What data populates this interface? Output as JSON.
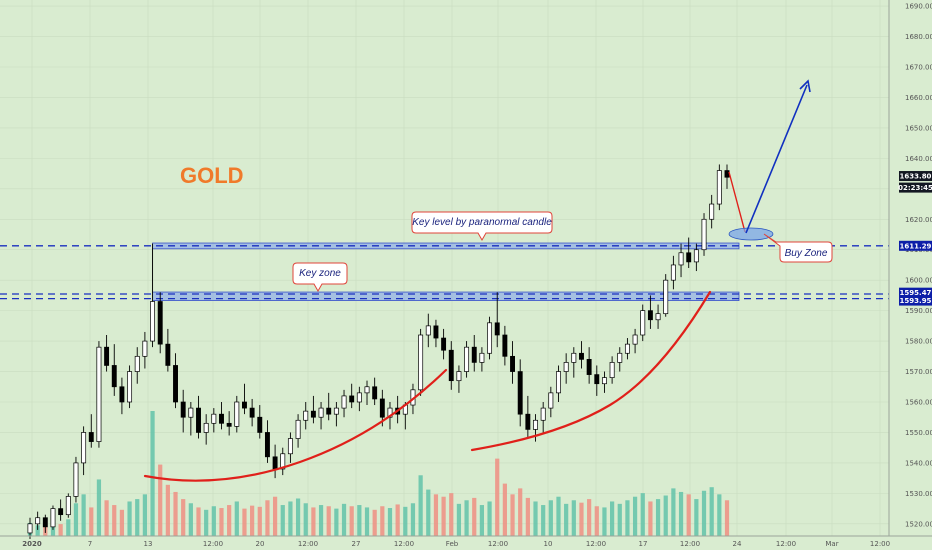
{
  "chart_data": {
    "type": "candlestick",
    "title": "GOLD",
    "ylim": [
      1516,
      1692
    ],
    "y_ticks": [
      1520,
      1530,
      1540,
      1550,
      1560,
      1570,
      1580,
      1590,
      1600,
      1610,
      1620,
      1630,
      1640,
      1650,
      1660,
      1670,
      1680,
      1690
    ],
    "x_ticks": [
      "2020",
      "7",
      "13",
      "12:00",
      "20",
      "12:00",
      "27",
      "12:00",
      "Feb",
      "12:00",
      "10",
      "12:00",
      "17",
      "12:00",
      "24",
      "12:00",
      "Mar",
      "12:00"
    ],
    "price_tags": [
      {
        "value": "1633.80",
        "color": "#131722",
        "role": "last"
      },
      {
        "value": "02:23:45",
        "color": "#131722",
        "role": "countdown"
      },
      {
        "value": "1611.29",
        "color": "#0d1ea8",
        "role": "level"
      },
      {
        "value": "1595.47",
        "color": "#0d1ea8",
        "role": "level"
      },
      {
        "value": "1593.95",
        "color": "#0d1ea8",
        "role": "level"
      }
    ],
    "levels": [
      1611.29,
      1595.47,
      1593.95
    ],
    "annotations": [
      {
        "text": "Key level by paranormal candle"
      },
      {
        "text": "Key zone"
      },
      {
        "text": "Buy Zone"
      }
    ],
    "candles": [
      [
        1517,
        1522,
        1515,
        1520
      ],
      [
        1520,
        1524,
        1518,
        1522
      ],
      [
        1522,
        1523,
        1517,
        1519
      ],
      [
        1519,
        1526,
        1518,
        1525
      ],
      [
        1525,
        1528,
        1521,
        1523
      ],
      [
        1523,
        1530,
        1522,
        1529
      ],
      [
        1529,
        1542,
        1527,
        1540
      ],
      [
        1540,
        1552,
        1536,
        1550
      ],
      [
        1550,
        1556,
        1545,
        1547
      ],
      [
        1547,
        1580,
        1545,
        1578
      ],
      [
        1578,
        1582,
        1570,
        1572
      ],
      [
        1572,
        1579,
        1562,
        1565
      ],
      [
        1565,
        1568,
        1556,
        1560
      ],
      [
        1560,
        1572,
        1558,
        1570
      ],
      [
        1570,
        1578,
        1566,
        1575
      ],
      [
        1575,
        1583,
        1571,
        1580
      ],
      [
        1580,
        1612,
        1578,
        1593
      ],
      [
        1593,
        1596,
        1576,
        1579
      ],
      [
        1579,
        1584,
        1570,
        1572
      ],
      [
        1572,
        1576,
        1558,
        1560
      ],
      [
        1560,
        1564,
        1550,
        1555
      ],
      [
        1555,
        1560,
        1549,
        1558
      ],
      [
        1558,
        1562,
        1548,
        1550
      ],
      [
        1550,
        1556,
        1546,
        1553
      ],
      [
        1553,
        1558,
        1550,
        1556
      ],
      [
        1556,
        1560,
        1551,
        1553
      ],
      [
        1553,
        1557,
        1549,
        1552
      ],
      [
        1552,
        1562,
        1550,
        1560
      ],
      [
        1560,
        1566,
        1556,
        1558
      ],
      [
        1558,
        1561,
        1552,
        1555
      ],
      [
        1555,
        1559,
        1548,
        1550
      ],
      [
        1550,
        1554,
        1540,
        1542
      ],
      [
        1542,
        1546,
        1535,
        1538
      ],
      [
        1538,
        1545,
        1536,
        1543
      ],
      [
        1543,
        1550,
        1540,
        1548
      ],
      [
        1548,
        1556,
        1545,
        1554
      ],
      [
        1554,
        1560,
        1551,
        1557
      ],
      [
        1557,
        1562,
        1553,
        1555
      ],
      [
        1555,
        1560,
        1551,
        1558
      ],
      [
        1558,
        1563,
        1554,
        1556
      ],
      [
        1556,
        1560,
        1552,
        1558
      ],
      [
        1558,
        1564,
        1555,
        1562
      ],
      [
        1562,
        1566,
        1558,
        1560
      ],
      [
        1560,
        1565,
        1557,
        1563
      ],
      [
        1563,
        1567,
        1559,
        1565
      ],
      [
        1565,
        1568,
        1559,
        1561
      ],
      [
        1561,
        1564,
        1552,
        1555
      ],
      [
        1555,
        1560,
        1551,
        1558
      ],
      [
        1558,
        1562,
        1553,
        1556
      ],
      [
        1556,
        1560,
        1551,
        1559
      ],
      [
        1559,
        1566,
        1556,
        1564
      ],
      [
        1564,
        1584,
        1562,
        1582
      ],
      [
        1582,
        1589,
        1578,
        1585
      ],
      [
        1585,
        1587,
        1578,
        1581
      ],
      [
        1581,
        1584,
        1574,
        1577
      ],
      [
        1577,
        1580,
        1564,
        1567
      ],
      [
        1567,
        1572,
        1563,
        1570
      ],
      [
        1570,
        1580,
        1568,
        1578
      ],
      [
        1578,
        1582,
        1570,
        1573
      ],
      [
        1573,
        1578,
        1570,
        1576
      ],
      [
        1576,
        1588,
        1574,
        1586
      ],
      [
        1586,
        1596,
        1578,
        1582
      ],
      [
        1582,
        1585,
        1572,
        1575
      ],
      [
        1575,
        1580,
        1566,
        1570
      ],
      [
        1570,
        1574,
        1552,
        1556
      ],
      [
        1556,
        1562,
        1548,
        1551
      ],
      [
        1551,
        1556,
        1547,
        1554
      ],
      [
        1554,
        1560,
        1550,
        1558
      ],
      [
        1558,
        1565,
        1555,
        1563
      ],
      [
        1563,
        1572,
        1560,
        1570
      ],
      [
        1570,
        1576,
        1566,
        1573
      ],
      [
        1573,
        1578,
        1568,
        1576
      ],
      [
        1576,
        1580,
        1571,
        1574
      ],
      [
        1574,
        1578,
        1566,
        1569
      ],
      [
        1569,
        1572,
        1562,
        1566
      ],
      [
        1566,
        1570,
        1563,
        1568
      ],
      [
        1568,
        1575,
        1566,
        1573
      ],
      [
        1573,
        1578,
        1570,
        1576
      ],
      [
        1576,
        1581,
        1574,
        1579
      ],
      [
        1579,
        1584,
        1576,
        1582
      ],
      [
        1582,
        1592,
        1580,
        1590
      ],
      [
        1590,
        1595,
        1584,
        1587
      ],
      [
        1587,
        1592,
        1584,
        1589
      ],
      [
        1589,
        1602,
        1588,
        1600
      ],
      [
        1600,
        1608,
        1597,
        1605
      ],
      [
        1605,
        1612,
        1601,
        1609
      ],
      [
        1609,
        1614,
        1604,
        1606
      ],
      [
        1606,
        1612,
        1603,
        1610
      ],
      [
        1610,
        1622,
        1608,
        1620
      ],
      [
        1620,
        1628,
        1617,
        1625
      ],
      [
        1625,
        1638,
        1623,
        1636
      ],
      [
        1636,
        1638,
        1630,
        1633.8
      ]
    ],
    "volume": [
      22,
      18,
      26,
      24,
      20,
      28,
      55,
      70,
      48,
      95,
      60,
      52,
      44,
      58,
      62,
      70,
      210,
      120,
      86,
      74,
      62,
      55,
      48,
      44,
      50,
      47,
      52,
      58,
      46,
      51,
      49,
      60,
      66,
      52,
      58,
      63,
      55,
      48,
      52,
      50,
      46,
      54,
      50,
      52,
      48,
      44,
      50,
      47,
      53,
      49,
      55,
      102,
      78,
      70,
      66,
      72,
      54,
      60,
      64,
      52,
      58,
      130,
      88,
      70,
      80,
      64,
      58,
      52,
      60,
      66,
      54,
      60,
      56,
      62,
      50,
      48,
      58,
      54,
      60,
      66,
      72,
      58,
      62,
      68,
      80,
      74,
      70,
      62,
      76,
      82,
      70,
      60
    ]
  }
}
